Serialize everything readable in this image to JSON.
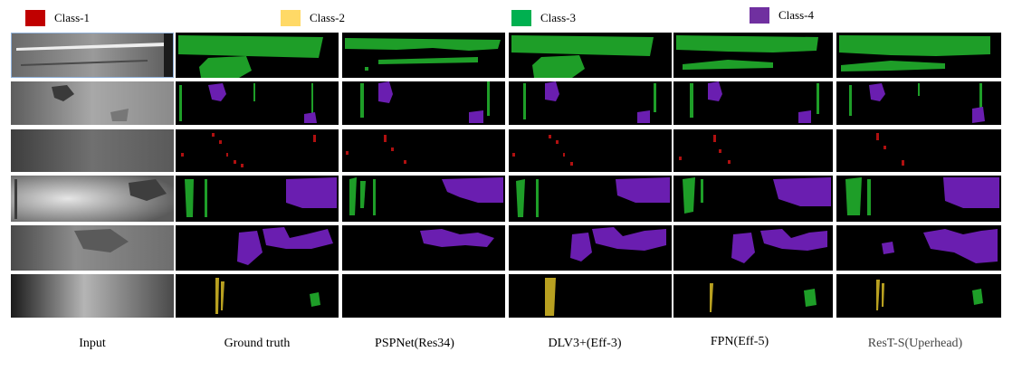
{
  "legend": [
    {
      "label": "Class-1",
      "color": "#c00000"
    },
    {
      "label": "Class-2",
      "color": "#ffd966"
    },
    {
      "label": "Class-3",
      "color": "#00b050"
    },
    {
      "label": "Class-4",
      "color": "#7030a0"
    }
  ],
  "mask_colors": {
    "class1": "#b01010",
    "class2": "#b8a020",
    "class3": "#1e9e28",
    "class4": "#6a1eb0"
  },
  "columns": [
    {
      "label": "Input"
    },
    {
      "label": "Ground truth"
    },
    {
      "label": "PSPNet(Res34)"
    },
    {
      "label": "DLV3+(Eff-3)"
    },
    {
      "label": "FPN(Eff-5)"
    },
    {
      "label": "ResT-S(Uperhead)"
    }
  ]
}
